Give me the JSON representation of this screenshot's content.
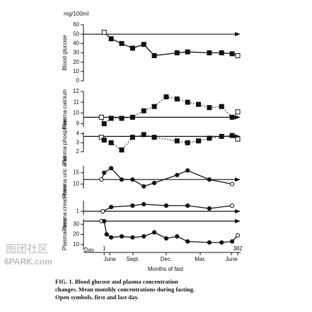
{
  "chart_data": [
    {
      "type": "line",
      "ylabel": "Blood glucose",
      "unit": "mg/100ml",
      "marker": "square",
      "line_style": "solid",
      "open_ends": true,
      "reference": 50,
      "ylim": [
        0,
        60
      ],
      "yticks": [
        0,
        10,
        20,
        30,
        40,
        50,
        60
      ],
      "xlim": [
        -58,
        390
      ],
      "x": [
        1,
        21,
        51,
        82,
        114,
        144,
        209,
        239,
        301,
        336,
        366,
        382
      ],
      "values": [
        52,
        45,
        40,
        35,
        39,
        27,
        30,
        31,
        30,
        30,
        29,
        27
      ]
    },
    {
      "type": "line",
      "ylabel": "Plasma calcium",
      "marker": "square",
      "line_style": "dotted",
      "open_ends": true,
      "reference": 9.6,
      "ylim": [
        8.7,
        12
      ],
      "yticks": [
        9,
        10,
        11,
        12
      ],
      "xlim": [
        -58,
        390
      ],
      "x": [
        -7,
        1,
        21,
        51,
        82,
        114,
        144,
        178,
        209,
        239,
        270,
        301,
        336,
        366,
        382
      ],
      "values": [
        9.6,
        9.0,
        9.5,
        9.5,
        9.6,
        10.2,
        10.6,
        11.5,
        11.3,
        11.0,
        10.8,
        10.5,
        10.6,
        9.6,
        10.1
      ]
    },
    {
      "type": "line",
      "ylabel": "Plasma phosphate",
      "marker": "square",
      "line_style": "dotted",
      "open_ends": true,
      "reference": 3.7,
      "ylim": [
        2,
        4.2
      ],
      "yticks": [
        2,
        3,
        4
      ],
      "xlim": [
        -58,
        390
      ],
      "x": [
        -7,
        1,
        21,
        51,
        82,
        114,
        144,
        209,
        239,
        270,
        301,
        336,
        366,
        382
      ],
      "values": [
        3.6,
        3.3,
        3.0,
        2.2,
        3.6,
        3.9,
        3.6,
        3.2,
        3.0,
        3.2,
        3.5,
        3.7,
        3.8,
        3.4
      ]
    },
    {
      "type": "line",
      "ylabel": "Plasma uric acid",
      "marker": "circle",
      "line_style": "solid",
      "open_ends": true,
      "reference": 12,
      "ylim": [
        8,
        18
      ],
      "yticks": [
        10,
        15
      ],
      "xlim": [
        -58,
        390
      ],
      "x": [
        -7,
        1,
        21,
        51,
        82,
        114,
        144,
        209,
        239,
        301,
        366
      ],
      "values": [
        12,
        15,
        17,
        12,
        12,
        9,
        10.5,
        14,
        16,
        12,
        10
      ]
    },
    {
      "type": "line",
      "ylabel": "Plasma creat-inine",
      "marker": "circle",
      "line_style": "solid",
      "open_ends": true,
      "reference": 1,
      "ylim": [
        0.5,
        2.5
      ],
      "yticks": [
        1
      ],
      "xlim": [
        -58,
        390
      ],
      "x": [
        -3,
        21,
        82,
        114,
        178,
        239,
        301,
        366
      ],
      "values": [
        1.0,
        1.6,
        1.8,
        2.0,
        1.8,
        1.8,
        1.4,
        1.8
      ]
    },
    {
      "type": "line",
      "ylabel": "Plasma urea",
      "marker": "circle",
      "line_style": "solid",
      "open_ends": true,
      "reference": 33,
      "ylim": [
        5,
        35
      ],
      "yticks": [
        10,
        20,
        30
      ],
      "xlim": [
        -58,
        390
      ],
      "x": [
        -7,
        1,
        8,
        21,
        51,
        82,
        114,
        144,
        178,
        209,
        239,
        301,
        336,
        366,
        382
      ],
      "values": [
        33,
        33,
        20,
        17,
        18,
        17,
        18,
        22,
        16,
        18,
        13,
        12,
        12,
        13,
        19
      ],
      "xlabel": "Months of fast",
      "day_label": "Day",
      "xticks": [
        {
          "value": 1,
          "label": "1"
        },
        {
          "value": 17,
          "label": "June"
        },
        {
          "value": 83,
          "label": "Sept."
        },
        {
          "value": 178,
          "label": "Dec."
        },
        {
          "value": 275,
          "label": "Mar."
        },
        {
          "value": 364,
          "label": "June"
        },
        {
          "value": 382,
          "label": "382"
        }
      ]
    }
  ],
  "caption": [
    "FIG. 1. Blood glucose and plasma concentration",
    "changes. Mean monthly concentrations during fasting.",
    "Open symbols, first and last day."
  ],
  "watermark": [
    "图团社区",
    "6PARK.com"
  ]
}
